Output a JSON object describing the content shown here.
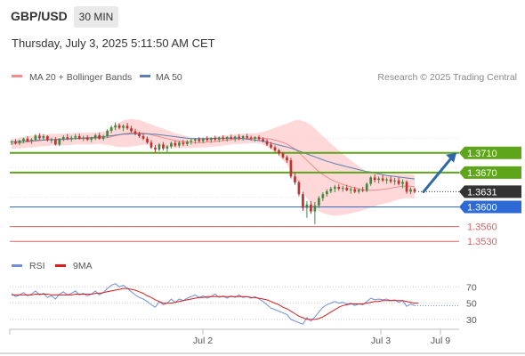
{
  "header": {
    "symbol": "GBP/USD",
    "timeframe": "30 MIN",
    "datetime": "Thursday, July 3, 2025 5:11:50 AM CET"
  },
  "legend": {
    "ma20_label": "MA 20 + Bollinger Bands",
    "ma50_label": "MA 50",
    "research": "Research © 2025 Trading Central",
    "rsi_label": "RSI",
    "rsi_ma_label": "9MA"
  },
  "colors": {
    "bullish": "#3e8a3e",
    "bearish": "#c03030",
    "bollinger_fill": "#ffcccc",
    "ma20": "#f28b8b",
    "ma50": "#5b7fb0",
    "pivot": "#5ea51a",
    "support": "#2d6ad6",
    "minor_level": "#e06060",
    "current": "#333333",
    "arrow": "#2f68a8",
    "rsi": "#6f8fd8",
    "rsi_ma": "#dd1c1c"
  },
  "chart_data": [
    {
      "type": "candlestick",
      "ylim": [
        1.3505,
        1.384
      ],
      "x_axis_labels": [
        "Jul 2",
        "Jul 3",
        "Jul 9"
      ],
      "levels": [
        {
          "value": 1.371,
          "label": "1.3710",
          "kind": "pivot"
        },
        {
          "value": 1.367,
          "label": "1.3670",
          "kind": "pivot"
        },
        {
          "value": 1.3631,
          "label": "1.3631",
          "kind": "current"
        },
        {
          "value": 1.36,
          "label": "1.3600",
          "kind": "support"
        },
        {
          "value": 1.356,
          "label": "1.3560",
          "kind": "minor"
        },
        {
          "value": 1.353,
          "label": "1.3530",
          "kind": "minor"
        }
      ],
      "candles": [
        [
          1.3731,
          1.3736,
          1.3726,
          1.3733
        ],
        [
          1.3733,
          1.3738,
          1.3727,
          1.373
        ],
        [
          1.373,
          1.3737,
          1.3726,
          1.3735
        ],
        [
          1.3735,
          1.3741,
          1.373,
          1.3739
        ],
        [
          1.3739,
          1.3744,
          1.3732,
          1.3734
        ],
        [
          1.3734,
          1.374,
          1.3728,
          1.3737
        ],
        [
          1.3737,
          1.3748,
          1.3734,
          1.3745
        ],
        [
          1.3745,
          1.375,
          1.3737,
          1.374
        ],
        [
          1.374,
          1.3748,
          1.3736,
          1.3744
        ],
        [
          1.3744,
          1.3746,
          1.3733,
          1.3736
        ],
        [
          1.3736,
          1.3741,
          1.373,
          1.3737
        ],
        [
          1.3737,
          1.3742,
          1.3725,
          1.3727
        ],
        [
          1.3727,
          1.374,
          1.3724,
          1.3738
        ],
        [
          1.3738,
          1.3746,
          1.3734,
          1.3742
        ],
        [
          1.3742,
          1.3748,
          1.3736,
          1.3739
        ],
        [
          1.3739,
          1.3745,
          1.3733,
          1.3741
        ],
        [
          1.3741,
          1.3748,
          1.3737,
          1.3744
        ],
        [
          1.3744,
          1.3749,
          1.3737,
          1.3739
        ],
        [
          1.3739,
          1.3745,
          1.3734,
          1.3741
        ],
        [
          1.3741,
          1.3746,
          1.3734,
          1.3737
        ],
        [
          1.3737,
          1.3743,
          1.3732,
          1.374
        ],
        [
          1.374,
          1.3749,
          1.3736,
          1.3746
        ],
        [
          1.3746,
          1.3751,
          1.3737,
          1.3739
        ],
        [
          1.3739,
          1.3747,
          1.3735,
          1.3744
        ],
        [
          1.3744,
          1.3758,
          1.3741,
          1.3755
        ],
        [
          1.3755,
          1.3766,
          1.375,
          1.3762
        ],
        [
          1.3762,
          1.3772,
          1.3756,
          1.3766
        ],
        [
          1.3766,
          1.377,
          1.3758,
          1.3761
        ],
        [
          1.3761,
          1.3768,
          1.3754,
          1.3765
        ],
        [
          1.3765,
          1.3771,
          1.3757,
          1.376
        ],
        [
          1.376,
          1.3765,
          1.3751,
          1.3754
        ],
        [
          1.3754,
          1.3759,
          1.3746,
          1.3749
        ],
        [
          1.3749,
          1.3753,
          1.3741,
          1.3744
        ],
        [
          1.3744,
          1.3749,
          1.3736,
          1.3739
        ],
        [
          1.3739,
          1.3743,
          1.3728,
          1.3731
        ],
        [
          1.3731,
          1.3736,
          1.3718,
          1.3721
        ],
        [
          1.3721,
          1.3726,
          1.3711,
          1.3717
        ],
        [
          1.3717,
          1.373,
          1.3713,
          1.3727
        ],
        [
          1.3727,
          1.3732,
          1.3715,
          1.3719
        ],
        [
          1.3719,
          1.3726,
          1.3712,
          1.3723
        ],
        [
          1.3723,
          1.3733,
          1.3719,
          1.373
        ],
        [
          1.373,
          1.3735,
          1.3722,
          1.3725
        ],
        [
          1.3725,
          1.3734,
          1.3721,
          1.3731
        ],
        [
          1.3731,
          1.3736,
          1.3724,
          1.3728
        ],
        [
          1.3728,
          1.3736,
          1.3724,
          1.3733
        ],
        [
          1.3733,
          1.3739,
          1.3727,
          1.3735
        ],
        [
          1.3735,
          1.374,
          1.3729,
          1.3738
        ],
        [
          1.3738,
          1.3742,
          1.3731,
          1.3734
        ],
        [
          1.3734,
          1.3741,
          1.373,
          1.3739
        ],
        [
          1.3739,
          1.3744,
          1.3733,
          1.3736
        ],
        [
          1.3736,
          1.3742,
          1.3731,
          1.374
        ],
        [
          1.374,
          1.3745,
          1.3734,
          1.3737
        ],
        [
          1.3737,
          1.3743,
          1.3732,
          1.3741
        ],
        [
          1.3741,
          1.3746,
          1.3735,
          1.3738
        ],
        [
          1.3738,
          1.3744,
          1.3733,
          1.3742
        ],
        [
          1.3742,
          1.3747,
          1.3736,
          1.3739
        ],
        [
          1.3739,
          1.3745,
          1.3733,
          1.3743
        ],
        [
          1.3743,
          1.3748,
          1.3736,
          1.374
        ],
        [
          1.374,
          1.3746,
          1.3735,
          1.3744
        ],
        [
          1.3744,
          1.3749,
          1.3737,
          1.3741
        ],
        [
          1.3741,
          1.3745,
          1.3735,
          1.3739
        ],
        [
          1.3739,
          1.3744,
          1.3733,
          1.3742
        ],
        [
          1.3742,
          1.3746,
          1.3735,
          1.3738
        ],
        [
          1.3738,
          1.3742,
          1.3731,
          1.3734
        ],
        [
          1.3734,
          1.3738,
          1.3724,
          1.3727
        ],
        [
          1.3727,
          1.3732,
          1.3718,
          1.3721
        ],
        [
          1.3721,
          1.3725,
          1.3712,
          1.3715
        ],
        [
          1.3715,
          1.3718,
          1.3705,
          1.3709
        ],
        [
          1.3709,
          1.3712,
          1.3698,
          1.3701
        ],
        [
          1.3701,
          1.3705,
          1.369,
          1.3695
        ],
        [
          1.3695,
          1.37,
          1.3658,
          1.3662
        ],
        [
          1.3662,
          1.367,
          1.3645,
          1.365
        ],
        [
          1.365,
          1.3654,
          1.3622,
          1.3626
        ],
        [
          1.3626,
          1.3631,
          1.3592,
          1.3598
        ],
        [
          1.3598,
          1.3612,
          1.3578,
          1.3605
        ],
        [
          1.3605,
          1.3612,
          1.3586,
          1.3591
        ],
        [
          1.3591,
          1.361,
          1.3565,
          1.3603
        ],
        [
          1.3603,
          1.3622,
          1.3598,
          1.3618
        ],
        [
          1.3618,
          1.363,
          1.3612,
          1.3626
        ],
        [
          1.3626,
          1.3636,
          1.3621,
          1.3632
        ],
        [
          1.3632,
          1.3641,
          1.3628,
          1.3637
        ],
        [
          1.3637,
          1.3645,
          1.363,
          1.3641
        ],
        [
          1.3641,
          1.3646,
          1.3633,
          1.3637
        ],
        [
          1.3637,
          1.3643,
          1.3631,
          1.3639
        ],
        [
          1.3639,
          1.3645,
          1.3632,
          1.3634
        ],
        [
          1.3634,
          1.364,
          1.3627,
          1.3636
        ],
        [
          1.3636,
          1.3641,
          1.3628,
          1.3631
        ],
        [
          1.3631,
          1.3638,
          1.3627,
          1.3635
        ],
        [
          1.3635,
          1.3641,
          1.363,
          1.3633
        ],
        [
          1.3633,
          1.365,
          1.363,
          1.3647
        ],
        [
          1.3647,
          1.3663,
          1.3643,
          1.366
        ],
        [
          1.366,
          1.3667,
          1.365,
          1.3655
        ],
        [
          1.3655,
          1.3662,
          1.3648,
          1.3658
        ],
        [
          1.3658,
          1.3665,
          1.3651,
          1.3654
        ],
        [
          1.3654,
          1.366,
          1.3647,
          1.3656
        ],
        [
          1.3656,
          1.3662,
          1.3648,
          1.3652
        ],
        [
          1.3652,
          1.3659,
          1.3645,
          1.3654
        ],
        [
          1.3654,
          1.366,
          1.3644,
          1.3647
        ],
        [
          1.3647,
          1.3656,
          1.3638,
          1.3651
        ],
        [
          1.3651,
          1.3654,
          1.3627,
          1.3631
        ],
        [
          1.3631,
          1.364,
          1.3626,
          1.3636
        ],
        [
          1.3636,
          1.3639,
          1.3628,
          1.3631
        ]
      ],
      "ma20": [
        1.3728,
        1.3729,
        1.373,
        1.3731,
        1.3732,
        1.3733,
        1.3734,
        1.3735,
        1.3736,
        1.3736,
        1.3737,
        1.3737,
        1.3737,
        1.3737,
        1.3738,
        1.3738,
        1.3739,
        1.3739,
        1.3739,
        1.3739,
        1.3739,
        1.374,
        1.374,
        1.374,
        1.3741,
        1.3743,
        1.3745,
        1.3747,
        1.3749,
        1.375,
        1.3751,
        1.3751,
        1.3751,
        1.375,
        1.3749,
        1.3747,
        1.3745,
        1.3743,
        1.3741,
        1.3739,
        1.3737,
        1.3735,
        1.3734,
        1.3733,
        1.3732,
        1.3731,
        1.3731,
        1.3731,
        1.3731,
        1.3732,
        1.3732,
        1.3733,
        1.3734,
        1.3735,
        1.3736,
        1.3737,
        1.3738,
        1.3738,
        1.3739,
        1.3739,
        1.374,
        1.374,
        1.374,
        1.374,
        1.3739,
        1.3738,
        1.3736,
        1.3734,
        1.3731,
        1.3728,
        1.3723,
        1.3718,
        1.3711,
        1.3703,
        1.3695,
        1.3687,
        1.3679,
        1.3672,
        1.3666,
        1.3661,
        1.3656,
        1.3652,
        1.3649,
        1.3646,
        1.3643,
        1.3641,
        1.3639,
        1.3637,
        1.3635,
        1.3634,
        1.3634,
        1.3634,
        1.3635,
        1.3636,
        1.3637,
        1.3638,
        1.364,
        1.3641,
        1.3642,
        1.3642,
        1.3642,
        1.3641
      ],
      "bb_width": [
        0.001,
        0.001,
        0.0011,
        0.0011,
        0.0011,
        0.0012,
        0.0012,
        0.0012,
        0.0012,
        0.0012,
        0.0012,
        0.0012,
        0.0012,
        0.0012,
        0.0012,
        0.0012,
        0.0012,
        0.0012,
        0.0012,
        0.0012,
        0.0012,
        0.0012,
        0.0012,
        0.0013,
        0.0015,
        0.0018,
        0.0022,
        0.0025,
        0.0027,
        0.0028,
        0.0028,
        0.0027,
        0.0026,
        0.0024,
        0.0022,
        0.0021,
        0.002,
        0.0019,
        0.0018,
        0.0017,
        0.0016,
        0.0015,
        0.0014,
        0.0013,
        0.0012,
        0.0011,
        0.001,
        0.001,
        0.001,
        0.001,
        0.001,
        0.001,
        0.001,
        0.001,
        0.001,
        0.001,
        0.001,
        0.001,
        0.001,
        0.001,
        0.001,
        0.001,
        0.0011,
        0.0013,
        0.0016,
        0.002,
        0.0025,
        0.003,
        0.0036,
        0.0042,
        0.005,
        0.0058,
        0.0066,
        0.0072,
        0.0077,
        0.008,
        0.0081,
        0.008,
        0.0078,
        0.0076,
        0.0073,
        0.007,
        0.0066,
        0.0062,
        0.0058,
        0.0054,
        0.005,
        0.0046,
        0.0042,
        0.0038,
        0.0035,
        0.0033,
        0.0031,
        0.003,
        0.0029,
        0.0028,
        0.0027,
        0.0026,
        0.0025,
        0.0024,
        0.0024,
        0.0024
      ],
      "ma50": [
        1.3732,
        1.3733,
        1.3733,
        1.3734,
        1.3734,
        1.3735,
        1.3735,
        1.3736,
        1.3736,
        1.3737,
        1.3737,
        1.3737,
        1.3738,
        1.3738,
        1.3738,
        1.3739,
        1.3739,
        1.374,
        1.374,
        1.3741,
        1.3741,
        1.3742,
        1.3742,
        1.3743,
        1.3744,
        1.3745,
        1.3746,
        1.3747,
        1.3748,
        1.3748,
        1.3749,
        1.3749,
        1.3749,
        1.3749,
        1.3749,
        1.3748,
        1.3748,
        1.3747,
        1.3746,
        1.3745,
        1.3744,
        1.3743,
        1.3742,
        1.3741,
        1.374,
        1.3739,
        1.3739,
        1.3739,
        1.3739,
        1.3739,
        1.3739,
        1.374,
        1.374,
        1.374,
        1.374,
        1.374,
        1.374,
        1.374,
        1.3739,
        1.3738,
        1.3737,
        1.3736,
        1.3735,
        1.3734,
        1.3732,
        1.373,
        1.3728,
        1.3726,
        1.3724,
        1.3722,
        1.372,
        1.3717,
        1.3714,
        1.3711,
        1.3708,
        1.3705,
        1.3702,
        1.3699,
        1.3696,
        1.3693,
        1.3691,
        1.3688,
        1.3686,
        1.3684,
        1.3682,
        1.368,
        1.3678,
        1.3676,
        1.3674,
        1.3672,
        1.3671,
        1.3669,
        1.3667,
        1.3666,
        1.3664,
        1.3663,
        1.3662,
        1.3661,
        1.366,
        1.3659,
        1.3658,
        1.3657
      ],
      "projection": {
        "from": 1.3631,
        "to": 1.371
      }
    },
    {
      "type": "line",
      "name": "RSI panel",
      "ylim": [
        20,
        78
      ],
      "yticks": [
        70,
        50,
        30
      ],
      "series": [
        {
          "name": "RSI",
          "values": [
            62,
            58,
            60,
            63,
            59,
            61,
            65,
            60,
            62,
            57,
            59,
            55,
            61,
            64,
            60,
            62,
            65,
            60,
            62,
            59,
            61,
            65,
            60,
            63,
            68,
            72,
            74,
            70,
            72,
            68,
            64,
            60,
            57,
            55,
            52,
            48,
            45,
            52,
            48,
            50,
            55,
            51,
            55,
            53,
            56,
            58,
            60,
            57,
            59,
            56,
            58,
            61,
            57,
            59,
            56,
            59,
            57,
            60,
            57,
            58,
            56,
            58,
            55,
            52,
            48,
            44,
            42,
            40,
            38,
            36,
            30,
            28,
            26,
            24,
            32,
            28,
            33,
            39,
            45,
            48,
            50,
            52,
            50,
            51,
            49,
            50,
            47,
            49,
            48,
            52,
            56,
            54,
            55,
            54,
            55,
            53,
            54,
            51,
            53,
            46,
            49,
            47
          ]
        },
        {
          "name": "9MA",
          "values": [
            60,
            60,
            60,
            60,
            60,
            60,
            61,
            61,
            61,
            61,
            60,
            60,
            60,
            60,
            60,
            60,
            61,
            61,
            61,
            61,
            61,
            62,
            62,
            63,
            64,
            65,
            66,
            67,
            68,
            68,
            67,
            66,
            64,
            62,
            59,
            57,
            54,
            52,
            50,
            50,
            50,
            51,
            52,
            53,
            54,
            55,
            56,
            57,
            57,
            58,
            58,
            58,
            58,
            58,
            58,
            58,
            58,
            58,
            58,
            58,
            57,
            57,
            56,
            55,
            54,
            52,
            50,
            48,
            45,
            43,
            40,
            37,
            34,
            32,
            30,
            30,
            30,
            31,
            33,
            36,
            39,
            42,
            45,
            47,
            48,
            49,
            49,
            49,
            49,
            50,
            51,
            52,
            52,
            53,
            53,
            53,
            53,
            53,
            53,
            52,
            51,
            50
          ]
        }
      ]
    }
  ]
}
